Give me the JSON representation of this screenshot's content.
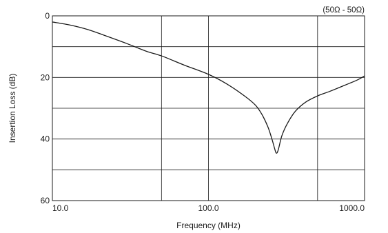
{
  "chart_data": {
    "type": "line",
    "title": "",
    "condition_note": "(50Ω - 50Ω)",
    "xlabel": "Frequency (MHz)",
    "ylabel": "Insertion Loss (dB)",
    "x_scale": "log",
    "xlim": [
      10,
      1000
    ],
    "ylim": [
      0,
      60
    ],
    "y_inverted": true,
    "grid": true,
    "legend": "none",
    "x_ticks": [
      {
        "value": 10,
        "label": "10.0"
      },
      {
        "value": 100,
        "label": "100.0"
      },
      {
        "value": 1000,
        "label": "1000.0"
      }
    ],
    "x_gridlines": [
      50,
      500
    ],
    "y_ticks": [
      {
        "value": 0,
        "label": "0"
      },
      {
        "value": 20,
        "label": "20"
      },
      {
        "value": 40,
        "label": "40"
      },
      {
        "value": 60,
        "label": "60"
      }
    ],
    "y_gridlines": [
      10,
      30,
      50
    ],
    "series": [
      {
        "color": "#1a1a1a",
        "points": [
          [
            10,
            2
          ],
          [
            13,
            3
          ],
          [
            17,
            4.5
          ],
          [
            22,
            6.5
          ],
          [
            30,
            9
          ],
          [
            40,
            11.5
          ],
          [
            50,
            13
          ],
          [
            70,
            16
          ],
          [
            100,
            19
          ],
          [
            130,
            22
          ],
          [
            170,
            26
          ],
          [
            200,
            29
          ],
          [
            220,
            32
          ],
          [
            240,
            36
          ],
          [
            255,
            40
          ],
          [
            265,
            43
          ],
          [
            272,
            44.6
          ],
          [
            280,
            43.5
          ],
          [
            295,
            39
          ],
          [
            320,
            35
          ],
          [
            360,
            31
          ],
          [
            420,
            28
          ],
          [
            500,
            26
          ],
          [
            600,
            24.5
          ],
          [
            750,
            22.5
          ],
          [
            900,
            20.8
          ],
          [
            1000,
            19.5
          ]
        ]
      }
    ]
  }
}
